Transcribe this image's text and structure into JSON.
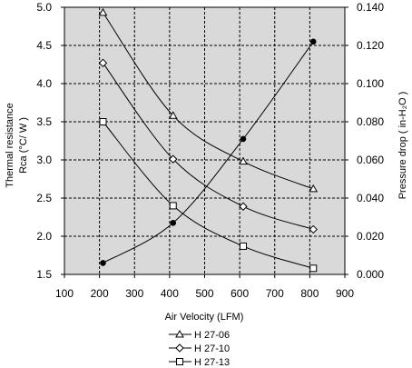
{
  "chart_data": {
    "type": "line",
    "x": [
      200,
      400,
      600,
      800
    ],
    "xlabel": "Air Velocity (LFM)",
    "xlim": [
      100,
      900
    ],
    "xticks": [
      "100",
      "200",
      "300",
      "400",
      "500",
      "600",
      "700",
      "800",
      "900"
    ],
    "ylabel_left": [
      "Thermal resistance",
      "Rca (°C/ W )"
    ],
    "ylim_left": [
      1.5,
      5.0
    ],
    "yticks_left": [
      "1.5",
      "2.0",
      "2.5",
      "3.0",
      "3.5",
      "4.0",
      "4.5",
      "5.0"
    ],
    "ylabel_right": "Pressure drop ( in-H₂O )",
    "ylim_right": [
      0.0,
      0.14
    ],
    "yticks_right": [
      "0.000",
      "0.020",
      "0.040",
      "0.060",
      "0.080",
      "0.100",
      "0.120",
      "0.140"
    ],
    "grid": true,
    "legend_position": "bottom",
    "series": [
      {
        "name": "H 27-06",
        "marker": "triangle",
        "axis": "left",
        "x": [
          210,
          410,
          610,
          810
        ],
        "values": [
          4.93,
          3.58,
          2.98,
          2.62
        ]
      },
      {
        "name": "H 27-10",
        "marker": "diamond",
        "axis": "left",
        "x": [
          210,
          410,
          610,
          810
        ],
        "values": [
          4.27,
          3.01,
          2.39,
          2.09
        ]
      },
      {
        "name": "H 27-13",
        "marker": "square",
        "axis": "left",
        "x": [
          210,
          410,
          610,
          810
        ],
        "values": [
          3.5,
          2.4,
          1.87,
          1.58
        ]
      },
      {
        "marker": "filled-circle",
        "axis": "right",
        "x": [
          210,
          410,
          610,
          810
        ],
        "values": [
          0.006,
          0.027,
          0.071,
          0.122
        ]
      }
    ]
  }
}
